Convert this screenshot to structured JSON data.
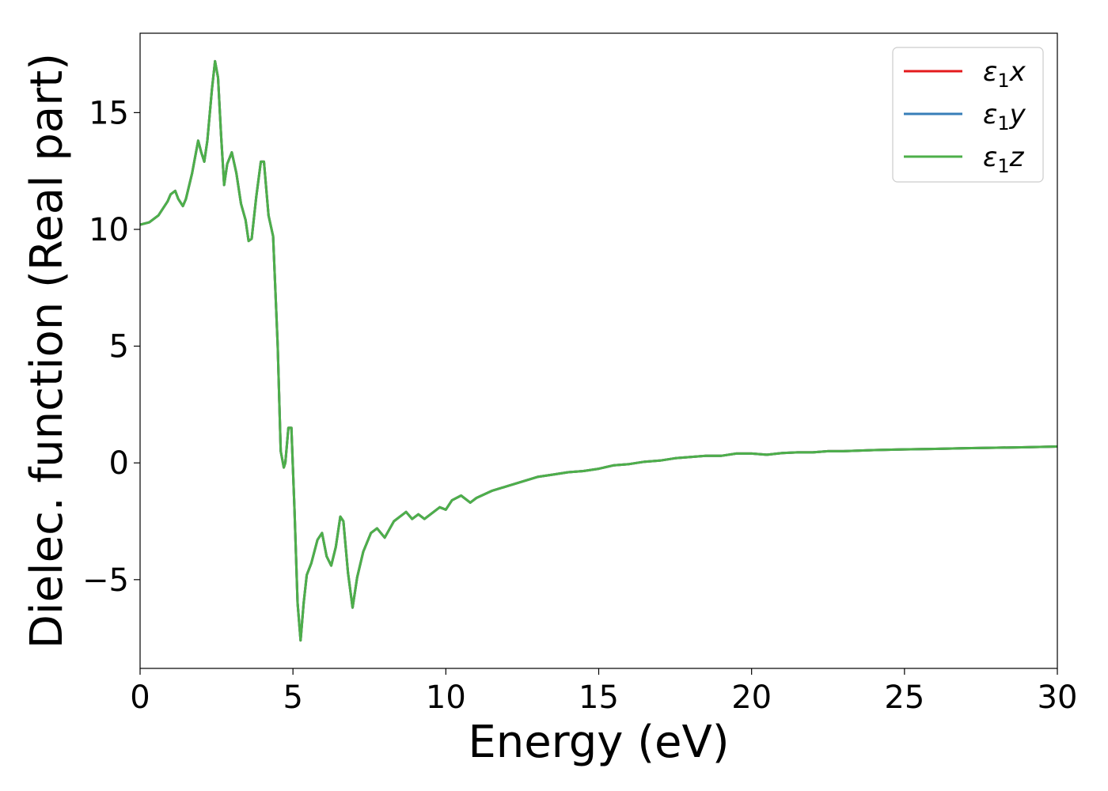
{
  "chart_data": {
    "type": "line",
    "title": "",
    "xlabel": "Energy (eV)",
    "ylabel": "Dielec. function (Real part)",
    "xlim": [
      0,
      30
    ],
    "ylim": [
      -8.8,
      18.4
    ],
    "xticks": [
      0,
      5,
      10,
      15,
      20,
      25,
      30
    ],
    "xtick_labels": [
      "0",
      "5",
      "10",
      "15",
      "20",
      "25",
      "30"
    ],
    "yticks": [
      -5,
      0,
      5,
      10,
      15
    ],
    "ytick_labels": [
      "−5",
      "0",
      "5",
      "10",
      "15"
    ],
    "grid": false,
    "legend_position": "top-right",
    "x": [
      0.0,
      0.3,
      0.6,
      0.9,
      1.0,
      1.15,
      1.25,
      1.4,
      1.5,
      1.7,
      1.9,
      2.0,
      2.1,
      2.2,
      2.35,
      2.45,
      2.55,
      2.65,
      2.75,
      2.85,
      3.0,
      3.15,
      3.3,
      3.45,
      3.55,
      3.65,
      3.8,
      3.95,
      4.05,
      4.2,
      4.35,
      4.5,
      4.6,
      4.7,
      4.75,
      4.85,
      4.95,
      5.05,
      5.15,
      5.25,
      5.35,
      5.45,
      5.6,
      5.8,
      5.95,
      6.1,
      6.25,
      6.4,
      6.55,
      6.65,
      6.8,
      6.95,
      7.1,
      7.3,
      7.55,
      7.75,
      8.0,
      8.3,
      8.5,
      8.7,
      8.9,
      9.1,
      9.3,
      9.5,
      9.8,
      10.0,
      10.2,
      10.5,
      10.8,
      11.0,
      11.5,
      12.0,
      12.5,
      13.0,
      13.5,
      14.0,
      14.5,
      15.0,
      15.5,
      16.0,
      16.5,
      17.0,
      17.5,
      18.0,
      18.5,
      19.0,
      19.5,
      20.0,
      20.5,
      21.0,
      21.5,
      22.0,
      22.5,
      23.0,
      24.0,
      25.0,
      26.0,
      27.0,
      28.0,
      29.0,
      30.0
    ],
    "series": [
      {
        "name": "x",
        "color": "#e41a1c",
        "values": [
          10.2,
          10.3,
          10.6,
          11.2,
          11.5,
          11.65,
          11.3,
          11.0,
          11.3,
          12.4,
          13.8,
          13.3,
          12.9,
          13.8,
          16.0,
          17.2,
          16.5,
          14.0,
          11.9,
          12.8,
          13.3,
          12.4,
          11.1,
          10.4,
          9.5,
          9.6,
          11.4,
          12.9,
          12.9,
          10.6,
          9.7,
          5.0,
          0.5,
          -0.2,
          0.0,
          1.5,
          1.5,
          -2.0,
          -6.0,
          -7.6,
          -6.0,
          -4.8,
          -4.3,
          -3.3,
          -3.0,
          -4.0,
          -4.4,
          -3.6,
          -2.3,
          -2.5,
          -4.7,
          -6.2,
          -4.9,
          -3.8,
          -3.0,
          -2.8,
          -3.2,
          -2.5,
          -2.3,
          -2.1,
          -2.4,
          -2.2,
          -2.4,
          -2.2,
          -1.9,
          -2.0,
          -1.6,
          -1.4,
          -1.7,
          -1.5,
          -1.2,
          -1.0,
          -0.8,
          -0.6,
          -0.5,
          -0.4,
          -0.35,
          -0.25,
          -0.1,
          -0.05,
          0.05,
          0.1,
          0.2,
          0.25,
          0.3,
          0.3,
          0.4,
          0.4,
          0.35,
          0.42,
          0.45,
          0.45,
          0.5,
          0.5,
          0.55,
          0.58,
          0.6,
          0.63,
          0.65,
          0.67,
          0.7
        ]
      },
      {
        "name": "y",
        "color": "#377eb8",
        "values": [
          10.2,
          10.3,
          10.6,
          11.2,
          11.5,
          11.65,
          11.3,
          11.0,
          11.3,
          12.4,
          13.8,
          13.3,
          12.9,
          13.8,
          16.0,
          17.2,
          16.5,
          14.0,
          11.9,
          12.8,
          13.3,
          12.4,
          11.1,
          10.4,
          9.5,
          9.6,
          11.4,
          12.9,
          12.9,
          10.6,
          9.7,
          5.0,
          0.5,
          -0.2,
          0.0,
          1.5,
          1.5,
          -2.0,
          -6.0,
          -7.6,
          -6.0,
          -4.8,
          -4.3,
          -3.3,
          -3.0,
          -4.0,
          -4.4,
          -3.6,
          -2.3,
          -2.5,
          -4.7,
          -6.2,
          -4.9,
          -3.8,
          -3.0,
          -2.8,
          -3.2,
          -2.5,
          -2.3,
          -2.1,
          -2.4,
          -2.2,
          -2.4,
          -2.2,
          -1.9,
          -2.0,
          -1.6,
          -1.4,
          -1.7,
          -1.5,
          -1.2,
          -1.0,
          -0.8,
          -0.6,
          -0.5,
          -0.4,
          -0.35,
          -0.25,
          -0.1,
          -0.05,
          0.05,
          0.1,
          0.2,
          0.25,
          0.3,
          0.3,
          0.4,
          0.4,
          0.35,
          0.42,
          0.45,
          0.45,
          0.5,
          0.5,
          0.55,
          0.58,
          0.6,
          0.63,
          0.65,
          0.67,
          0.7
        ]
      },
      {
        "name": "z",
        "color": "#4daf4a",
        "values": [
          10.2,
          10.3,
          10.6,
          11.2,
          11.5,
          11.65,
          11.3,
          11.0,
          11.3,
          12.4,
          13.8,
          13.3,
          12.9,
          13.8,
          16.0,
          17.2,
          16.5,
          14.0,
          11.9,
          12.8,
          13.3,
          12.4,
          11.1,
          10.4,
          9.5,
          9.6,
          11.4,
          12.9,
          12.9,
          10.6,
          9.7,
          5.0,
          0.5,
          -0.2,
          0.0,
          1.5,
          1.5,
          -2.0,
          -6.0,
          -7.6,
          -6.0,
          -4.8,
          -4.3,
          -3.3,
          -3.0,
          -4.0,
          -4.4,
          -3.6,
          -2.3,
          -2.5,
          -4.7,
          -6.2,
          -4.9,
          -3.8,
          -3.0,
          -2.8,
          -3.2,
          -2.5,
          -2.3,
          -2.1,
          -2.4,
          -2.2,
          -2.4,
          -2.2,
          -1.9,
          -2.0,
          -1.6,
          -1.4,
          -1.7,
          -1.5,
          -1.2,
          -1.0,
          -0.8,
          -0.6,
          -0.5,
          -0.4,
          -0.35,
          -0.25,
          -0.1,
          -0.05,
          0.05,
          0.1,
          0.2,
          0.25,
          0.3,
          0.3,
          0.4,
          0.4,
          0.35,
          0.42,
          0.45,
          0.45,
          0.5,
          0.5,
          0.55,
          0.58,
          0.6,
          0.63,
          0.65,
          0.67,
          0.7
        ]
      }
    ],
    "legend": [
      {
        "symbol": "ε",
        "sub": "1",
        "suffix": "x",
        "color": "#e41a1c"
      },
      {
        "symbol": "ε",
        "sub": "1",
        "suffix": "y",
        "color": "#377eb8"
      },
      {
        "symbol": "ε",
        "sub": "1",
        "suffix": "z",
        "color": "#4daf4a"
      }
    ]
  }
}
